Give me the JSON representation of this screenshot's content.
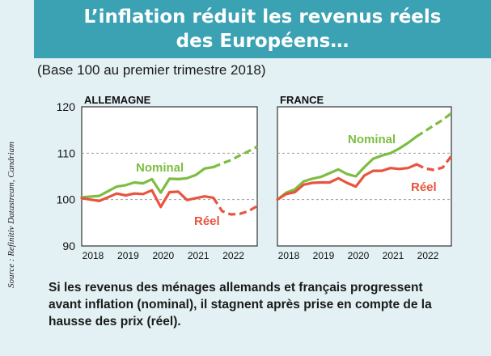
{
  "title_lines": [
    "L’inflation réduit les revenus réels",
    "des Européens…"
  ],
  "subtitle": "(Base 100 au premier trimestre 2018)",
  "source": "Source : Refinitiv Datastream, Candriam",
  "caption_lines": [
    "Si les revenus des ménages allemands et français progressent",
    "avant inflation (nominal), il stagnent après prise en compte de la",
    "hausse des prix (réel)."
  ],
  "colors": {
    "title_bg": "#3aa2b3",
    "panel_bg": "#e4f1f4",
    "nominal": "#7dbd42",
    "reel": "#e8543f"
  },
  "chart_data": [
    {
      "type": "line",
      "title": "ALLEMAGNE",
      "x_ticks": [
        "2018",
        "2019",
        "2020",
        "2021",
        "2022"
      ],
      "y_ticks": [
        "120",
        "110",
        "100",
        "90"
      ],
      "ylim": [
        90,
        120
      ],
      "xlim": [
        2018.0,
        2023.0
      ],
      "grid": "dashed horizontal lines at 100 and 110",
      "series": [
        {
          "name": "Nominal",
          "color": "#7dbd42",
          "x": [
            2018.0,
            2018.5,
            2018.75,
            2019.0,
            2019.25,
            2019.5,
            2019.75,
            2020.0,
            2020.25,
            2020.5,
            2020.75,
            2021.0,
            2021.25,
            2021.5,
            2021.75
          ],
          "y": [
            100.5,
            100.8,
            101.8,
            102.8,
            103.1,
            103.7,
            103.5,
            104.4,
            101.5,
            104.5,
            104.4,
            104.6,
            105.3,
            106.7,
            107.0
          ],
          "projection": {
            "x": [
              2021.75,
              2022.0,
              2022.25,
              2022.5,
              2022.75,
              2023.0
            ],
            "y": [
              107.0,
              107.8,
              108.5,
              109.5,
              110.4,
              111.4
            ]
          }
        },
        {
          "name": "Réel",
          "color": "#e8543f",
          "x": [
            2018.0,
            2018.25,
            2018.5,
            2018.75,
            2019.0,
            2019.25,
            2019.5,
            2019.75,
            2020.0,
            2020.25,
            2020.5,
            2020.75,
            2021.0,
            2021.25,
            2021.5,
            2021.75
          ],
          "y": [
            100.3,
            100.0,
            99.7,
            100.5,
            101.3,
            100.9,
            101.3,
            101.2,
            102.0,
            98.4,
            101.6,
            101.7,
            99.9,
            100.3,
            100.7,
            100.4
          ],
          "projection": {
            "x": [
              2021.75,
              2022.0,
              2022.25,
              2022.5,
              2022.75,
              2023.0
            ],
            "y": [
              100.4,
              97.5,
              96.8,
              96.9,
              97.5,
              98.6
            ]
          }
        }
      ]
    },
    {
      "type": "line",
      "title": "FRANCE",
      "x_ticks": [
        "2018",
        "2019",
        "2020",
        "2021",
        "2022"
      ],
      "y_ticks": [
        "120",
        "110",
        "100",
        "90"
      ],
      "ylim": [
        90,
        120
      ],
      "xlim": [
        2018.0,
        2023.0
      ],
      "grid": "dashed horizontal lines at 100 and 110",
      "series": [
        {
          "name": "Nominal",
          "color": "#7dbd42",
          "x": [
            2018.0,
            2018.25,
            2018.5,
            2018.75,
            2019.0,
            2019.25,
            2019.5,
            2019.75,
            2020.0,
            2020.25,
            2020.5,
            2020.75,
            2021.0,
            2021.25,
            2021.5,
            2021.75,
            2022.0
          ],
          "y": [
            100.0,
            101.5,
            102.2,
            103.9,
            104.5,
            104.9,
            105.7,
            106.5,
            105.5,
            105.0,
            107.0,
            108.8,
            109.5,
            110.0,
            111.0,
            112.2,
            113.6
          ],
          "projection": {
            "x": [
              2022.0,
              2022.25,
              2022.5,
              2022.75,
              2023.0
            ],
            "y": [
              113.6,
              114.8,
              116.0,
              117.2,
              118.6
            ]
          }
        },
        {
          "name": "Réel",
          "color": "#e8543f",
          "x": [
            2018.0,
            2018.25,
            2018.5,
            2018.75,
            2019.0,
            2019.25,
            2019.5,
            2019.75,
            2020.0,
            2020.25,
            2020.5,
            2020.75,
            2021.0,
            2021.25,
            2021.5,
            2021.75,
            2022.0
          ],
          "y": [
            100.0,
            101.2,
            101.6,
            103.2,
            103.6,
            103.7,
            103.7,
            104.6,
            103.6,
            102.8,
            105.2,
            106.2,
            106.2,
            106.8,
            106.6,
            106.8,
            107.6
          ],
          "projection": {
            "x": [
              2022.0,
              2022.25,
              2022.5,
              2022.75,
              2023.0
            ],
            "y": [
              107.6,
              106.7,
              106.4,
              106.9,
              109.4
            ]
          }
        }
      ]
    }
  ]
}
